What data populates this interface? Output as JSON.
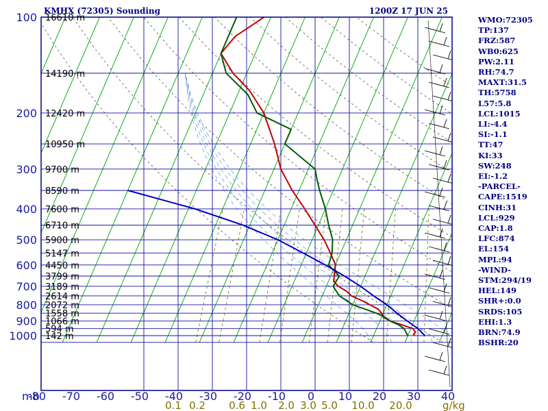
{
  "chart_data": {
    "type": "line",
    "title": "KMHX (72305) Sounding",
    "valid_time": "1200Z 17 JUN 25",
    "pressure_unit": "mb",
    "mixing_ratio_unit": "g/kg",
    "pressure_ticks": [
      "100",
      "200",
      "300",
      "400",
      "500",
      "600",
      "700",
      "800",
      "900",
      "1000"
    ],
    "temperature_ticks": [
      "-80",
      "-70",
      "-60",
      "-50",
      "-40",
      "-30",
      "-20",
      "-10",
      "0",
      "10",
      "20",
      "30",
      "40"
    ],
    "mixing_ratio_labels": [
      "0.1",
      "0.2",
      "0.6",
      "1.0",
      "2.0",
      "3.0",
      "5.0",
      "10.0",
      "20.0"
    ],
    "height_labels": [
      "16610 m",
      "14190 m",
      "12420 m",
      "10950 m",
      "9700 m",
      "8590 m",
      "7600 m",
      "6710 m",
      "5900 m",
      "5147 m",
      "4450 m",
      "3799 m",
      "3189 m",
      "2614 m",
      "2072 m",
      "1558 m",
      "1066 m",
      "594 m",
      "142 m"
    ],
    "height_pressures": [
      100,
      150,
      200,
      250,
      300,
      350,
      400,
      450,
      500,
      550,
      600,
      650,
      700,
      750,
      800,
      850,
      900,
      950,
      1000
    ],
    "mixing_ratio_values": [
      0.1,
      0.2,
      0.6,
      1.0,
      2.0,
      3.0,
      5.0,
      10.0,
      20.0
    ],
    "series": [
      {
        "name": "",
        "color": "#c00000",
        "x": [
          22.0,
          21.5,
          21.8,
          20.5,
          17.0,
          13.0,
          10.5,
          9.5,
          8.0,
          5.0,
          2.0,
          -1.5,
          -3.5,
          -6.5,
          -8.5,
          -9.0,
          -10.0,
          -13.0,
          -16.5,
          -21.0,
          -26.0,
          -32.0,
          -38.0,
          -43.0,
          -50.0,
          -57.0,
          -64.0,
          -70.0,
          -68.0,
          -62.0
        ],
        "y": [
          1000,
          990,
          975,
          950,
          925,
          900,
          875,
          850,
          825,
          800,
          775,
          750,
          725,
          700,
          675,
          650,
          600,
          550,
          500,
          450,
          400,
          350,
          300,
          250,
          200,
          170,
          150,
          130,
          115,
          100
        ]
      },
      {
        "name": "",
        "color": "#005a00",
        "x": [
          20.0,
          19.0,
          18.0,
          16.0,
          13.0,
          11.0,
          8.0,
          0.0,
          -5.0,
          -8.0,
          -7.5,
          -12.0,
          -12.5,
          -14.0,
          -17.0,
          -20.0,
          -24.0,
          -26.0,
          -28.0,
          -40.0,
          -40.0,
          -52.0,
          -57.0,
          -66.0,
          -70.0,
          -70.0
        ],
        "y": [
          1000,
          975,
          950,
          925,
          900,
          875,
          850,
          800,
          750,
          700,
          650,
          600,
          550,
          500,
          450,
          400,
          350,
          325,
          300,
          250,
          225,
          200,
          175,
          150,
          130,
          100
        ]
      },
      {
        "name": "",
        "color": "#0000c0",
        "x": [
          25.0,
          22.0,
          18.0,
          14.0,
          10.0,
          5.0,
          0.0,
          -6.0,
          -13.0,
          -21.0,
          -30.0,
          -42.0,
          -58.0,
          -80.0
        ],
        "y": [
          1000,
          950,
          900,
          850,
          800,
          750,
          700,
          650,
          600,
          550,
          500,
          450,
          400,
          350
        ]
      }
    ],
    "xlim": [
      -80,
      40
    ],
    "ylim": [
      1050,
      100
    ],
    "grid": true
  },
  "indices": [
    "WMO:72305",
    "TP:137",
    "FRZ:587",
    "WB0:625",
    "PW:2.11",
    "RH:74.7",
    "MAXT:31.5",
    "TH:5758",
    "L57:5.8",
    "LCL:1015",
    "LI:-4.4",
    "SI:-1.1",
    "TT:47",
    "KI:33",
    "SW:248",
    "EI:-1.2",
    "-PARCEL-",
    "CAPE:1519",
    "CINH:31",
    "LCL:929",
    "CAP:1.8",
    "LFC:874",
    "EL:154",
    "MPL:94",
    "-WIND-",
    "STM:294/19",
    "HEL:149",
    "SHR+:0.0",
    "SRDS:105",
    "EHI:1.3",
    "BRN:74.9",
    "BSHR:20"
  ]
}
